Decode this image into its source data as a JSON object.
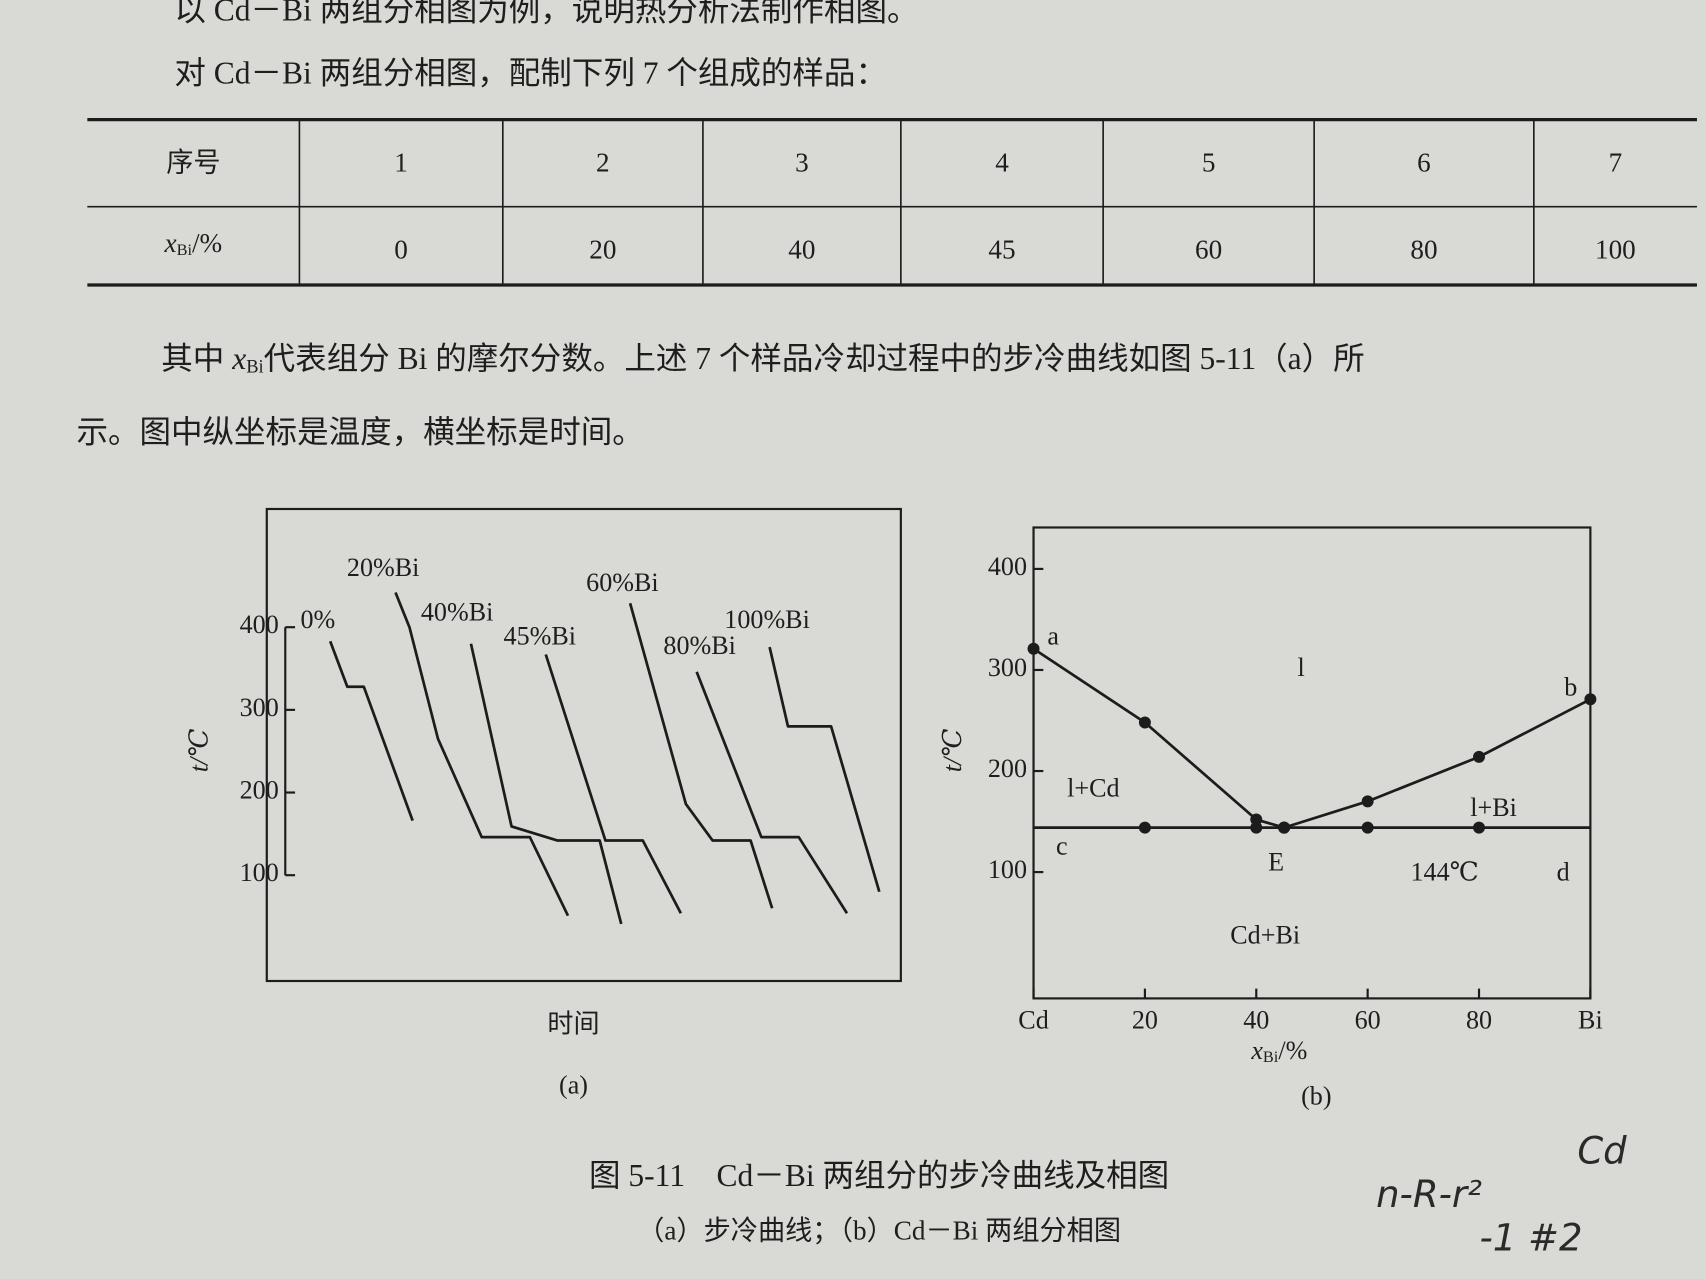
{
  "text": {
    "line1": "以 Cd－Bi 两组分相图为例，说明热分析法制作相图。",
    "line2": "对 Cd－Bi 两组分相图，配制下列 7 个组成的样品："
  },
  "table": {
    "header": [
      "序号",
      1,
      2,
      3,
      4,
      5,
      6,
      7
    ],
    "row_label": {
      "symbol": "x",
      "subscript": "Bi",
      "unit": "/%"
    },
    "row": [
      0,
      20,
      40,
      45,
      60,
      80,
      100
    ]
  },
  "paragraph": {
    "before": "其中 ",
    "symbol": "x",
    "subscript": "Bi",
    "after": "代表组分 Bi 的摩尔分数。上述 7 个样品冷却过程中的步冷曲线如图 5-11（a）所",
    "line2": "示。图中纵坐标是温度，横坐标是时间。"
  },
  "chart_data": [
    {
      "type": "line",
      "ylabel": "t/℃",
      "xlabel": "时间",
      "caption": "(a)",
      "xlim": [
        0,
        100
      ],
      "ylim": [
        -28,
        543
      ],
      "yticks": [
        100,
        200,
        300,
        400
      ],
      "series": [
        {
          "name": "0%",
          "color": "#1c1c1c",
          "x": [
            10,
            12.7,
            15.3,
            23
          ],
          "values": [
            383,
            328,
            328,
            166
          ]
        },
        {
          "name": "20%Bi",
          "color": "#1c1c1c",
          "x": [
            20.3,
            22.5,
            27,
            33.9,
            41.5,
            47.5
          ],
          "values": [
            442,
            400,
            265,
            146,
            146,
            51
          ]
        },
        {
          "name": "40%Bi",
          "color": "#1c1c1c",
          "x": [
            32.2,
            38.6,
            45.8,
            52.5,
            55.9
          ],
          "values": [
            380,
            159,
            142,
            142,
            41
          ]
        },
        {
          "name": "45%Bi",
          "color": "#1c1c1c",
          "x": [
            44,
            53.4,
            59.3,
            65.3
          ],
          "values": [
            367,
            142,
            142,
            54
          ]
        },
        {
          "name": "60%Bi",
          "color": "#1c1c1c",
          "x": [
            57.3,
            66.1,
            70.3,
            76.3,
            79.7
          ],
          "values": [
            429,
            186,
            142,
            142,
            60
          ]
        },
        {
          "name": "80%Bi",
          "color": "#1c1c1c",
          "x": [
            67.8,
            78,
            83.9,
            91.5
          ],
          "values": [
            346,
            146,
            146,
            54
          ]
        },
        {
          "name": "100%Bi",
          "color": "#1c1c1c",
          "x": [
            79.3,
            82.2,
            89,
            96.6
          ],
          "values": [
            376,
            280,
            280,
            80
          ]
        }
      ]
    },
    {
      "type": "line",
      "ylabel": "t/℃",
      "xlabel": {
        "symbol": "x",
        "subscript": "Bi",
        "unit": "/%"
      },
      "caption": "(b)",
      "xlim": [
        0,
        100
      ],
      "ylim": [
        -25,
        441
      ],
      "xticks": [
        {
          "value": 0,
          "label": "Cd"
        },
        20,
        40,
        60,
        80,
        {
          "value": 100,
          "label": "Bi"
        }
      ],
      "yticks": [
        100,
        200,
        300,
        400
      ],
      "series": [
        {
          "color": "#1c1c1c",
          "x": [
            0,
            20,
            40,
            45
          ],
          "values": [
            321,
            248,
            152,
            144
          ]
        },
        {
          "color": "#1c1c1c",
          "x": [
            45,
            60,
            80,
            100
          ],
          "values": [
            144,
            170,
            214,
            271
          ]
        },
        {
          "color": "#1c1c1c",
          "x": [
            0,
            20,
            40,
            45,
            60,
            80,
            100
          ],
          "values": [
            144,
            144,
            144,
            144,
            144,
            144,
            144
          ]
        }
      ],
      "annotations": [
        "a",
        "b",
        "c",
        "d",
        "E",
        "l",
        "l+Cd",
        "l+Bi",
        "144℃",
        "Cd+Bi"
      ]
    }
  ],
  "figure_caption": {
    "title": "图 5-11　Cd－Bi 两组分的步冷曲线及相图",
    "subtitle": "（a）步冷曲线；（b）Cd－Bi 两组分相图"
  },
  "handwriting": [
    "n-R-r²",
    "Cd",
    "-1 #2"
  ]
}
